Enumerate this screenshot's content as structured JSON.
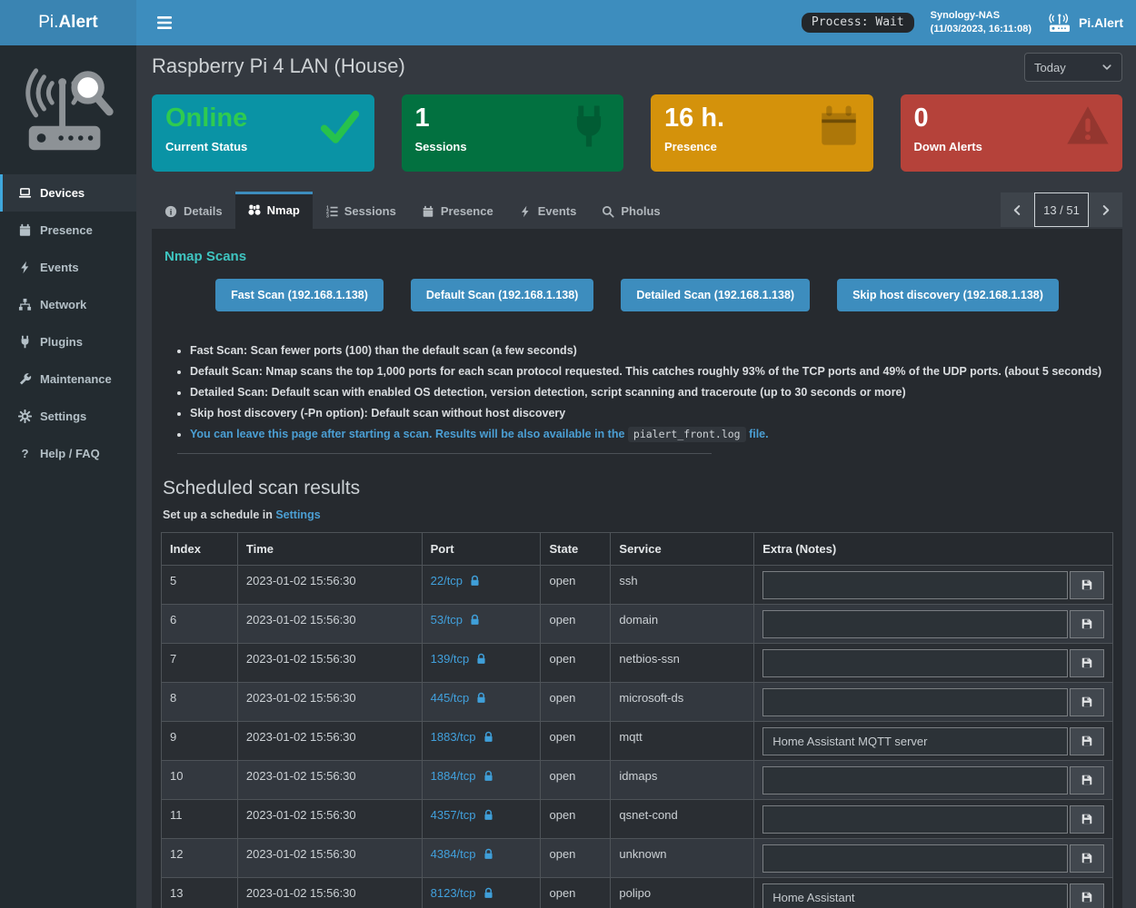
{
  "navbar": {
    "brand_prefix": "Pi.",
    "brand_bold": "Alert",
    "process_badge": "Process: Wait",
    "server_name": "Synology-NAS",
    "server_timestamp": "(11/03/2023, 16:11:08)",
    "app_label": "Pi.Alert"
  },
  "sidebar": {
    "items": [
      {
        "label": "Devices",
        "icon": "laptop-icon",
        "active": true
      },
      {
        "label": "Presence",
        "icon": "calendar-icon",
        "active": false
      },
      {
        "label": "Events",
        "icon": "bolt-icon",
        "active": false
      },
      {
        "label": "Network",
        "icon": "network-icon",
        "active": false
      },
      {
        "label": "Plugins",
        "icon": "plug-icon",
        "active": false
      },
      {
        "label": "Maintenance",
        "icon": "wrench-icon",
        "active": false
      },
      {
        "label": "Settings",
        "icon": "gear-icon",
        "active": false
      },
      {
        "label": "Help / FAQ",
        "icon": "question-icon",
        "active": false
      }
    ]
  },
  "page": {
    "title": "Raspberry Pi 4 LAN (House)",
    "period_select": "Today"
  },
  "summary_cards": [
    {
      "value": "Online",
      "label": "Current Status",
      "bg": "#0a93a5",
      "value_color": "#2fcb50",
      "icon": "check-icon",
      "icon_color": "#27c24c"
    },
    {
      "value": "1",
      "label": "Sessions",
      "bg": "#027140",
      "value_color": "#ffffff",
      "icon": "plug-icon",
      "icon_color": "rgba(0,0,0,0.18)"
    },
    {
      "value": "16 h.",
      "label": "Presence",
      "bg": "#d4920b",
      "value_color": "#ffffff",
      "icon": "calendar-icon",
      "icon_color": "rgba(0,0,0,0.18)"
    },
    {
      "value": "0",
      "label": "Down Alerts",
      "bg": "#b5423a",
      "value_color": "#ffffff",
      "icon": "warning-icon",
      "icon_color": "rgba(0,0,0,0.18)"
    }
  ],
  "tabs": {
    "items": [
      {
        "label": "Details",
        "icon": "info-icon",
        "active": false
      },
      {
        "label": "Nmap",
        "icon": "binoculars-icon",
        "active": true
      },
      {
        "label": "Sessions",
        "icon": "list-icon",
        "active": false
      },
      {
        "label": "Presence",
        "icon": "calendar-icon",
        "active": false
      },
      {
        "label": "Events",
        "icon": "bolt-icon",
        "active": false
      },
      {
        "label": "Pholus",
        "icon": "search-icon",
        "active": false
      }
    ],
    "pager": {
      "position": "13 / 51"
    }
  },
  "nmap": {
    "heading": "Nmap Scans",
    "scan_buttons": [
      "Fast Scan (192.168.1.138)",
      "Default Scan (192.168.1.138)",
      "Detailed Scan (192.168.1.138)",
      "Skip host discovery (192.168.1.138)"
    ],
    "bullets": [
      "Fast Scan: Scan fewer ports (100) than the default scan (a few seconds)",
      "Default Scan: Nmap scans the top 1,000 ports for each scan protocol requested. This catches roughly 93% of the TCP ports and 49% of the UDP ports. (about 5 seconds)",
      "Detailed Scan: Default scan with enabled OS detection, version detection, script scanning and traceroute (up to 30 seconds or more)",
      "Skip host discovery (-Pn option): Default scan without host discovery"
    ],
    "note": {
      "pre": "You can leave this page after starting a scan. Results will be also available in the ",
      "code": "pialert_front.log",
      "post": " file."
    }
  },
  "scheduled": {
    "heading": "Scheduled scan results",
    "subtitle_prefix": "Set up a schedule in ",
    "settings_link": "Settings",
    "table": {
      "headers": [
        "Index",
        "Time",
        "Port",
        "State",
        "Service",
        "Extra (Notes)"
      ],
      "rows": [
        {
          "index": "5",
          "time": "2023-01-02 15:56:30",
          "port": "22/tcp",
          "state": "open",
          "service": "ssh",
          "note": ""
        },
        {
          "index": "6",
          "time": "2023-01-02 15:56:30",
          "port": "53/tcp",
          "state": "open",
          "service": "domain",
          "note": ""
        },
        {
          "index": "7",
          "time": "2023-01-02 15:56:30",
          "port": "139/tcp",
          "state": "open",
          "service": "netbios-ssn",
          "note": ""
        },
        {
          "index": "8",
          "time": "2023-01-02 15:56:30",
          "port": "445/tcp",
          "state": "open",
          "service": "microsoft-ds",
          "note": ""
        },
        {
          "index": "9",
          "time": "2023-01-02 15:56:30",
          "port": "1883/tcp",
          "state": "open",
          "service": "mqtt",
          "note": "Home Assistant MQTT server"
        },
        {
          "index": "10",
          "time": "2023-01-02 15:56:30",
          "port": "1884/tcp",
          "state": "open",
          "service": "idmaps",
          "note": ""
        },
        {
          "index": "11",
          "time": "2023-01-02 15:56:30",
          "port": "4357/tcp",
          "state": "open",
          "service": "qsnet-cond",
          "note": ""
        },
        {
          "index": "12",
          "time": "2023-01-02 15:56:30",
          "port": "4384/tcp",
          "state": "open",
          "service": "unknown",
          "note": ""
        },
        {
          "index": "13",
          "time": "2023-01-02 15:56:30",
          "port": "8123/tcp",
          "state": "open",
          "service": "polipo",
          "note": "Home Assistant"
        }
      ]
    }
  }
}
